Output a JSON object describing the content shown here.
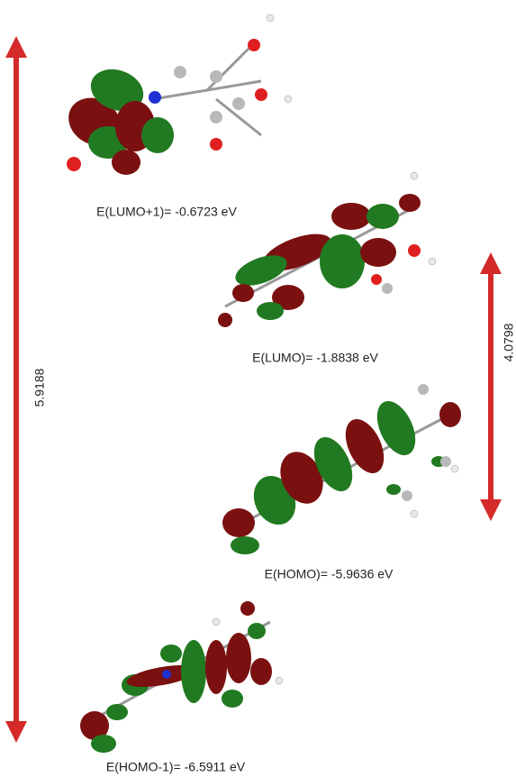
{
  "orbitals": [
    {
      "label": "E(LUMO+1)= -0.6723 eV"
    },
    {
      "label": "E(LUMO)= -1.8838 eV"
    },
    {
      "label": "E(HOMO)= -5.9636 eV"
    },
    {
      "label": "E(HOMO-1)= -6.5911 eV"
    }
  ],
  "gaps": [
    {
      "label": "5.9188"
    },
    {
      "label": "4.0798"
    }
  ]
}
